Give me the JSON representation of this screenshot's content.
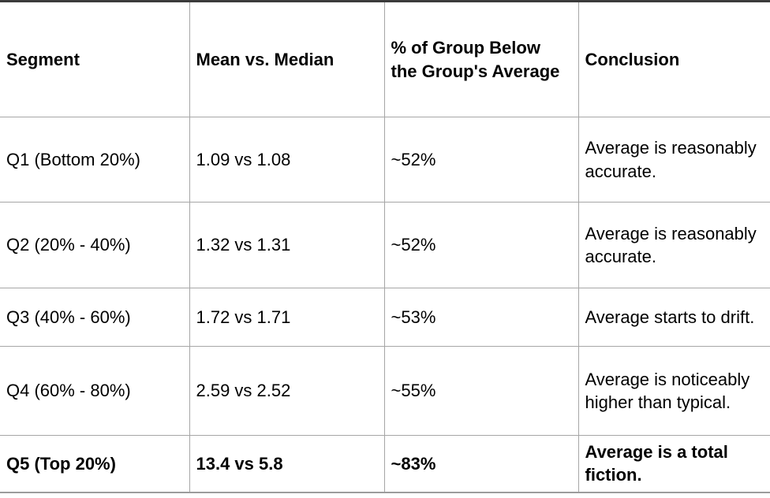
{
  "table": {
    "columns": [
      {
        "label": "Segment"
      },
      {
        "label": "Mean vs. Median"
      },
      {
        "label": "% of Group Below the Group's Average"
      },
      {
        "label": "Conclusion"
      }
    ],
    "rows": [
      {
        "segment": "Q1 (Bottom 20%)",
        "mean_vs_median": "1.09 vs 1.08",
        "pct_below_average": "~52%",
        "conclusion": "Average is reasonably accurate.",
        "emphasis": false
      },
      {
        "segment": "Q2 (20% - 40%)",
        "mean_vs_median": "1.32 vs 1.31",
        "pct_below_average": "~52%",
        "conclusion": "Average is reasonably accurate.",
        "emphasis": false
      },
      {
        "segment": "Q3 (40% - 60%)",
        "mean_vs_median": "1.72 vs 1.71",
        "pct_below_average": "~53%",
        "conclusion": "Average starts to drift.",
        "emphasis": false
      },
      {
        "segment": "Q4 (60% - 80%)",
        "mean_vs_median": "2.59 vs 2.52",
        "pct_below_average": "~55%",
        "conclusion": "Average is noticeably higher than typical.",
        "emphasis": false
      },
      {
        "segment": "Q5 (Top 20%)",
        "mean_vs_median": "13.4 vs 5.8",
        "pct_below_average": "~83%",
        "conclusion": "Average is a total fiction.",
        "emphasis": true
      }
    ],
    "colors": {
      "text": "#000000",
      "grid_line": "#a6a6a6",
      "top_border": "#3b3b3b",
      "bottom_border": "#9c9c9c",
      "background": "#ffffff"
    }
  },
  "chart_data": {
    "type": "table",
    "title": "",
    "columns": [
      "Segment",
      "Mean vs. Median",
      "% of Group Below the Group's Average",
      "Conclusion"
    ],
    "rows": [
      [
        "Q1 (Bottom 20%)",
        "1.09 vs 1.08",
        "~52%",
        "Average is reasonably accurate."
      ],
      [
        "Q2 (20% - 40%)",
        "1.32 vs 1.31",
        "~52%",
        "Average is reasonably accurate."
      ],
      [
        "Q3 (40% - 60%)",
        "1.72 vs 1.71",
        "~53%",
        "Average starts to drift."
      ],
      [
        "Q4 (60% - 80%)",
        "2.59 vs 2.52",
        "~55%",
        "Average is noticeably higher than typical."
      ],
      [
        "Q5 (Top 20%)",
        "13.4 vs 5.8",
        "~83%",
        "Average is a total fiction."
      ]
    ]
  }
}
